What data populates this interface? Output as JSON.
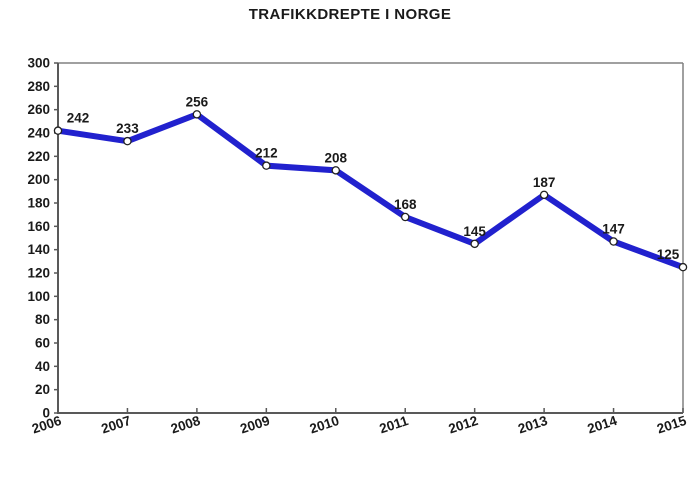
{
  "title": "TRAFIKKDREPTE I NORGE",
  "chart_data": {
    "type": "line",
    "title": "TRAFIKKDREPTE I NORGE",
    "categories": [
      "2006",
      "2007",
      "2008",
      "2009",
      "2010",
      "2011",
      "2012",
      "2013",
      "2014",
      "2015"
    ],
    "values": [
      242,
      233,
      256,
      212,
      208,
      168,
      145,
      187,
      147,
      125
    ],
    "xlabel": "",
    "ylabel": "",
    "ylim": [
      0,
      300
    ],
    "ytick_step": 20,
    "grid": false,
    "legend": false,
    "data_labels": true,
    "line_color": "#2121CE",
    "marker_fill": "#ffffff",
    "marker_stroke": "#222222",
    "axis_color": "#595959",
    "frame_color": "#808080",
    "text_color": "#1a1a1a"
  }
}
